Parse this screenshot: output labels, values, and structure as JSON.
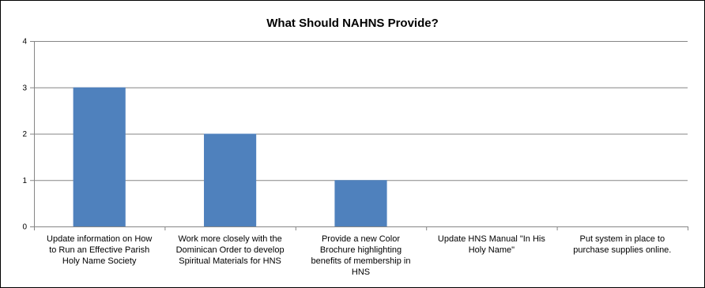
{
  "chart_data": {
    "type": "bar",
    "title": "What Should NAHNS Provide?",
    "categories": [
      "Update information on How to Run an Effective Parish Holy Name Society",
      "Work more closely with the Dominican Order to develop Spiritual Materials for HNS",
      "Provide a new Color Brochure highlighting benefits of membership in HNS",
      "Update HNS Manual \"In His Holy Name\"",
      "Put system in place to purchase supplies online."
    ],
    "category_lines": [
      [
        "Update information on How",
        "to Run an Effective Parish",
        "Holy Name Society"
      ],
      [
        "Work more closely with the",
        "Dominican Order to develop",
        "Spiritual Materials for HNS"
      ],
      [
        "Provide a new Color",
        "Brochure highlighting",
        "benefits of membership in",
        "HNS"
      ],
      [
        "Update HNS Manual \"In His",
        "Holy Name\""
      ],
      [
        "Put system in place to",
        "purchase supplies online."
      ]
    ],
    "values": [
      3,
      2,
      1,
      0,
      0
    ],
    "ylim": [
      0,
      4
    ],
    "yticks": [
      "0",
      "1",
      "2",
      "3",
      "4"
    ],
    "grid": true,
    "legend": "none",
    "bar_color": "#4f81bd",
    "gridline_color": "#868686"
  }
}
